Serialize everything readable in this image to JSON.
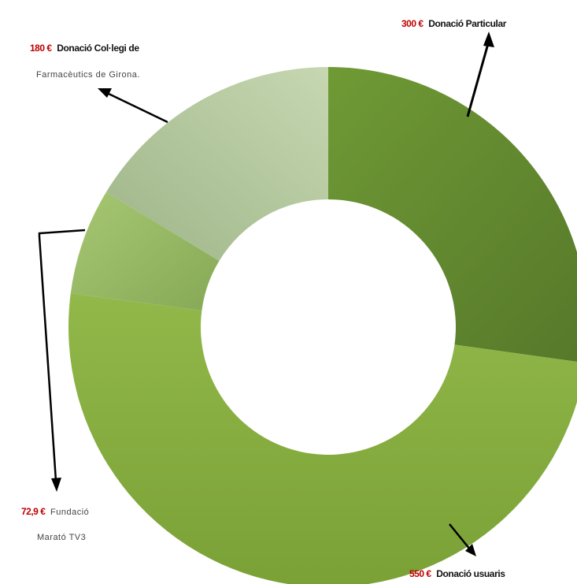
{
  "chart_data": {
    "type": "pie",
    "donut": true,
    "units": "€",
    "categories": [
      "Donació Particular",
      "Donació usuaris",
      "Fundació Marató TV3",
      "Donació Col·legi de Farmacèutics de Girona."
    ],
    "values": [
      300,
      550,
      72.9,
      180
    ],
    "colors": [
      "#5f8a2b",
      "#86ae3f",
      "#8fb25a",
      "#b6c9a0"
    ],
    "labels": [
      {
        "amount": "300 €",
        "text": "Donació Particular"
      },
      {
        "amount": "550 €",
        "text": "Donació usuaris"
      },
      {
        "amount": "72,9 €",
        "text": "Fundació",
        "text2": "Marató TV3"
      },
      {
        "amount": "180 €",
        "text": "Donació Col·legi de",
        "text2": "Farmacèutics de Girona."
      }
    ]
  }
}
